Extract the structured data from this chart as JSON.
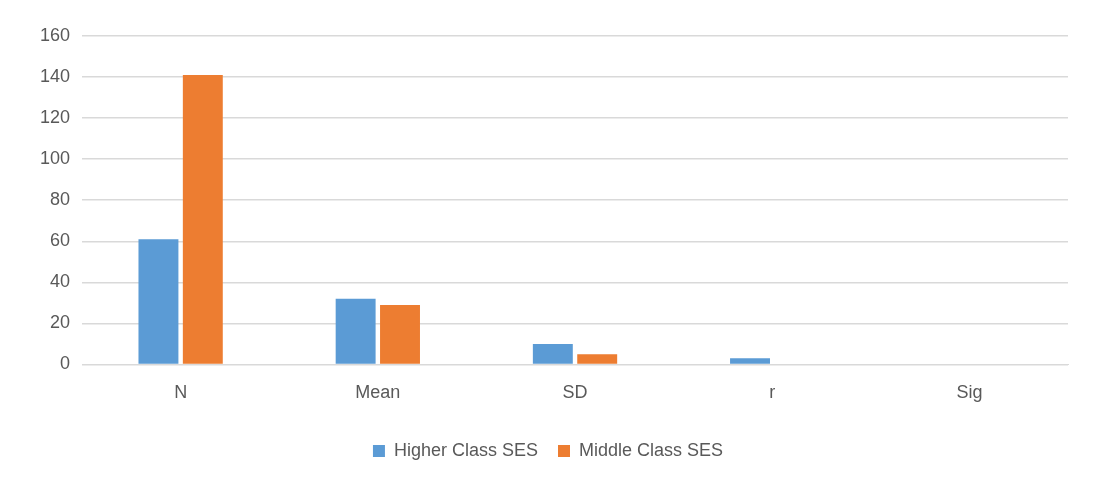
{
  "chart_data": {
    "type": "bar",
    "categories": [
      "N",
      "Mean",
      "SD",
      "r",
      "Sig"
    ],
    "series": [
      {
        "name": "Higher Class SES",
        "color": "#5b9bd5",
        "values": [
          61,
          32,
          10,
          3,
          0
        ]
      },
      {
        "name": "Middle Class SES",
        "color": "#ed7d31",
        "values": [
          141,
          29,
          5,
          0,
          0
        ]
      }
    ],
    "ylim": [
      0,
      160
    ],
    "yticks": [
      0,
      20,
      40,
      60,
      80,
      100,
      120,
      140,
      160
    ],
    "grid": "y",
    "legend": "bottom"
  }
}
